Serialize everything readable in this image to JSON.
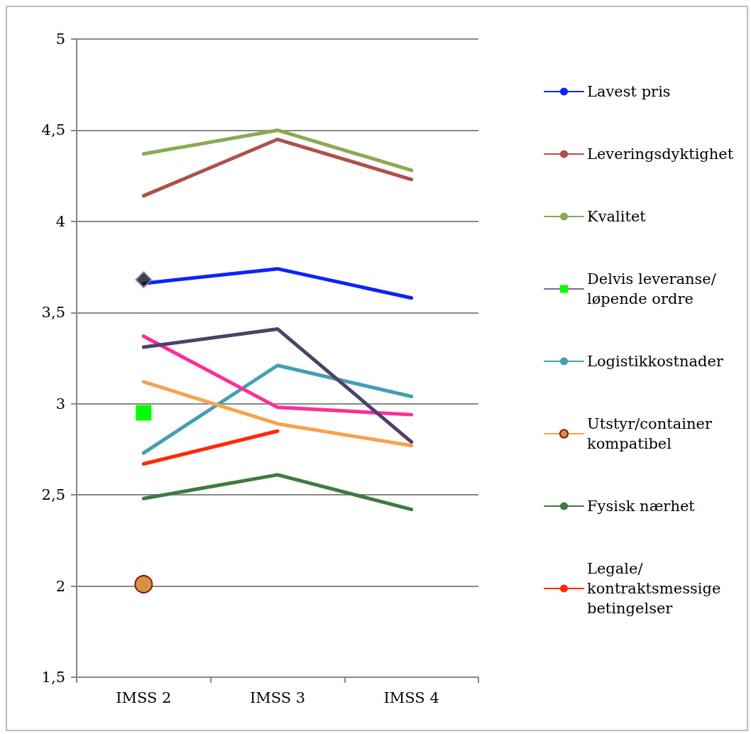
{
  "chart_data": {
    "type": "line",
    "categories": [
      "IMSS 2",
      "IMSS 3",
      "IMSS 4"
    ],
    "ylim": [
      1.5,
      5
    ],
    "yticks": [
      {
        "value": 1.5,
        "label": "1,5"
      },
      2,
      {
        "value": 2.5,
        "label": "2,5"
      },
      3,
      {
        "value": 3.5,
        "label": "3,5"
      },
      4,
      {
        "value": 4.5,
        "label": "4,5"
      },
      5
    ],
    "grid": "y",
    "legend": "right",
    "marker": "none",
    "series": [
      {
        "name": "Lavest pris",
        "color": "#0a24ff",
        "values": [
          3.66,
          3.74,
          3.58
        ]
      },
      {
        "name": "Leveringsdyktighet",
        "color": "#b0504a",
        "values": [
          4.14,
          4.45,
          4.23
        ]
      },
      {
        "name": "Kvalitet",
        "color": "#8ba852",
        "values": [
          4.37,
          4.5,
          4.28
        ]
      },
      {
        "name": "Delvis leveranse/ løpende ordre",
        "color": "#7f64a0",
        "colors": [
          "#00ff00",
          null,
          null
        ],
        "marker": "square",
        "values": [
          2.95,
          null,
          null
        ]
      },
      {
        "name": "Logistikkostnader",
        "color": "#449fb4",
        "values": [
          2.73,
          3.21,
          3.04
        ]
      },
      {
        "name": "Utstyr/container kompatibel",
        "color": "#f9a24e",
        "colors": [
          "#d88f46",
          null,
          null
        ],
        "marker": "circle",
        "values": [
          2.01,
          null,
          null
        ]
      },
      {
        "name": "Fysisk nærhet",
        "color": "#3f7a43",
        "values": [
          2.48,
          2.61,
          2.42
        ]
      },
      {
        "name": "Legale/ kontraktsmessige betingelser",
        "color": "#ff2a00",
        "values": [
          2.67,
          2.85,
          null
        ]
      },
      {
        "color": "#ff2d96",
        "values": [
          3.37,
          2.98,
          2.94
        ]
      },
      {
        "color": "#4f4068",
        "values": [
          3.31,
          3.41,
          2.79
        ]
      },
      {
        "color": "#f9a24e",
        "values": [
          3.12,
          2.89,
          2.77
        ]
      },
      {
        "type": "scatter",
        "color": "#111111",
        "marker": "diamond",
        "values": [
          3.68,
          null,
          null
        ]
      }
    ]
  }
}
